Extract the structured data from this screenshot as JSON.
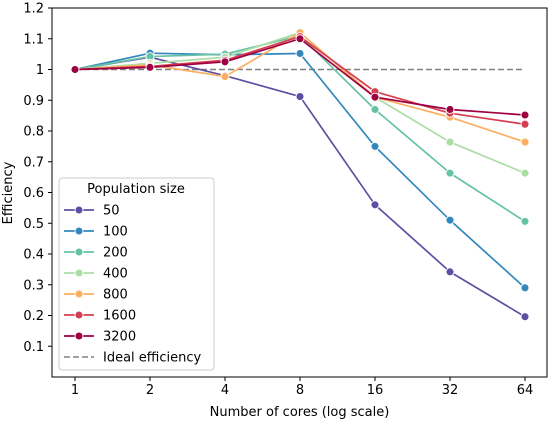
{
  "chart_data": {
    "type": "line",
    "xlabel": "Number of cores (log scale)",
    "ylabel": "Efficiency",
    "x_scale": "log2",
    "x": [
      1,
      2,
      4,
      8,
      16,
      32,
      64
    ],
    "x_tick_labels": [
      "1",
      "2",
      "4",
      "8",
      "16",
      "32",
      "64"
    ],
    "ylim": [
      0,
      1.2
    ],
    "y_ticks": [
      0.1,
      0.2,
      0.3,
      0.4,
      0.5,
      0.6,
      0.7,
      0.8,
      0.9,
      1,
      1.1,
      1.2
    ],
    "y_tick_labels": [
      "0.1",
      "0.2",
      "0.3",
      "0.4",
      "0.5",
      "0.6",
      "0.7",
      "0.8",
      "0.9",
      "1",
      "1.1",
      "1.2"
    ],
    "grid": false,
    "legend": {
      "title": "Population size",
      "placement": "lower-left"
    },
    "series": [
      {
        "name": "50",
        "color": "#5e4fa2",
        "values": [
          1.0,
          1.04,
          0.98,
          0.912,
          0.56,
          0.342,
          0.196
        ]
      },
      {
        "name": "100",
        "color": "#3288bd",
        "values": [
          1.0,
          1.053,
          1.048,
          1.052,
          0.75,
          0.51,
          0.29
        ]
      },
      {
        "name": "200",
        "color": "#66c2a5",
        "values": [
          1.0,
          1.042,
          1.05,
          1.11,
          0.87,
          0.663,
          0.506
        ]
      },
      {
        "name": "400",
        "color": "#abdda4",
        "values": [
          1.0,
          1.02,
          1.04,
          1.12,
          0.91,
          0.764,
          0.663
        ]
      },
      {
        "name": "800",
        "color": "#fdae61",
        "values": [
          1.0,
          1.015,
          0.977,
          1.12,
          0.91,
          0.845,
          0.764
        ]
      },
      {
        "name": "1600",
        "color": "#d53e4f",
        "values": [
          1.0,
          1.01,
          1.03,
          1.107,
          0.928,
          0.858,
          0.822
        ]
      },
      {
        "name": "3200",
        "color": "#9e0142",
        "values": [
          1.0,
          1.007,
          1.025,
          1.1,
          0.91,
          0.87,
          0.852
        ]
      }
    ],
    "reference_line": {
      "name": "Ideal efficiency",
      "value": 1.0,
      "color": "#808080",
      "style": "dashed"
    }
  }
}
